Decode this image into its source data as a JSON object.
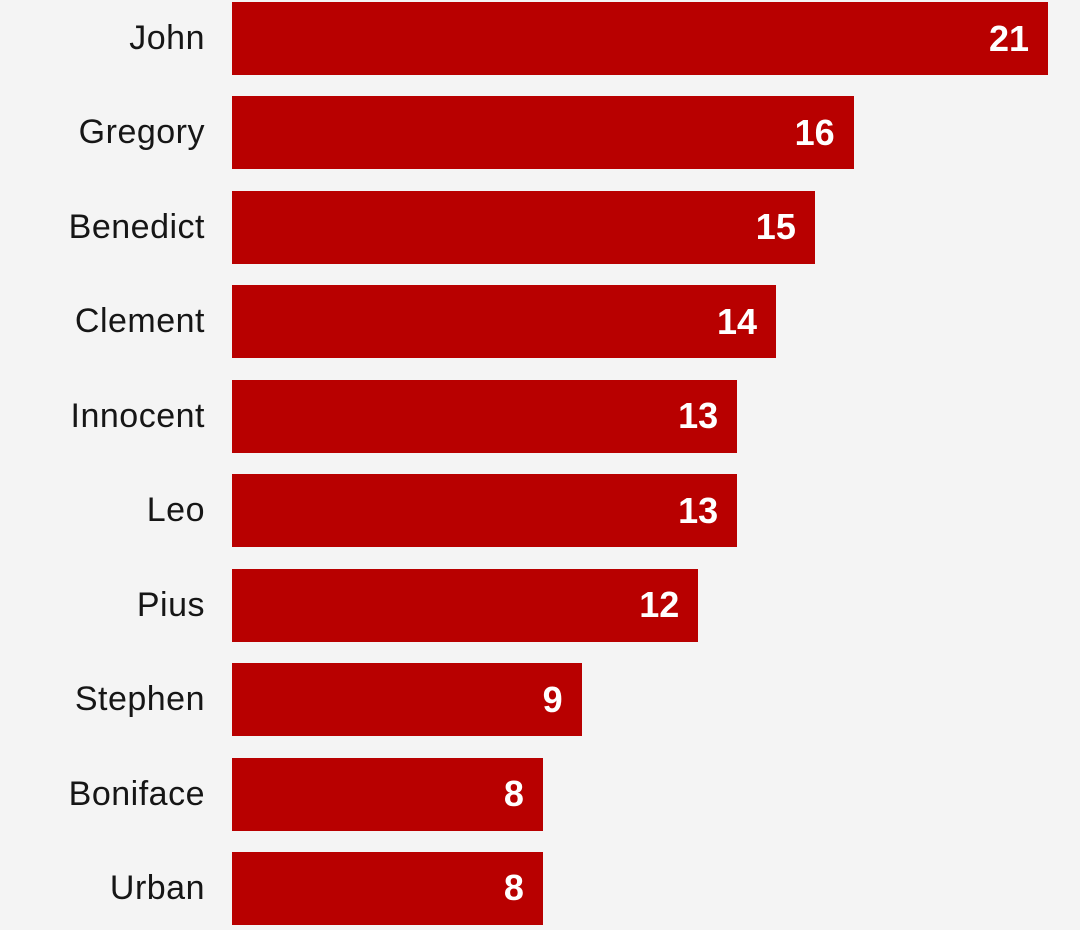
{
  "colors": {
    "background": "#f4f4f4",
    "bar": "#b80000",
    "label_text": "#161616",
    "value_text": "#ffffff"
  },
  "chart_data": {
    "type": "bar",
    "orientation": "horizontal",
    "title": "",
    "xlabel": "",
    "ylabel": "",
    "categories": [
      "John",
      "Gregory",
      "Benedict",
      "Clement",
      "Innocent",
      "Leo",
      "Pius",
      "Stephen",
      "Boniface",
      "Urban"
    ],
    "values": [
      21,
      16,
      15,
      14,
      13,
      13,
      12,
      9,
      8,
      8
    ],
    "xlim": [
      0,
      21
    ],
    "grid": false,
    "legend": false,
    "value_labels": "inside-end"
  }
}
